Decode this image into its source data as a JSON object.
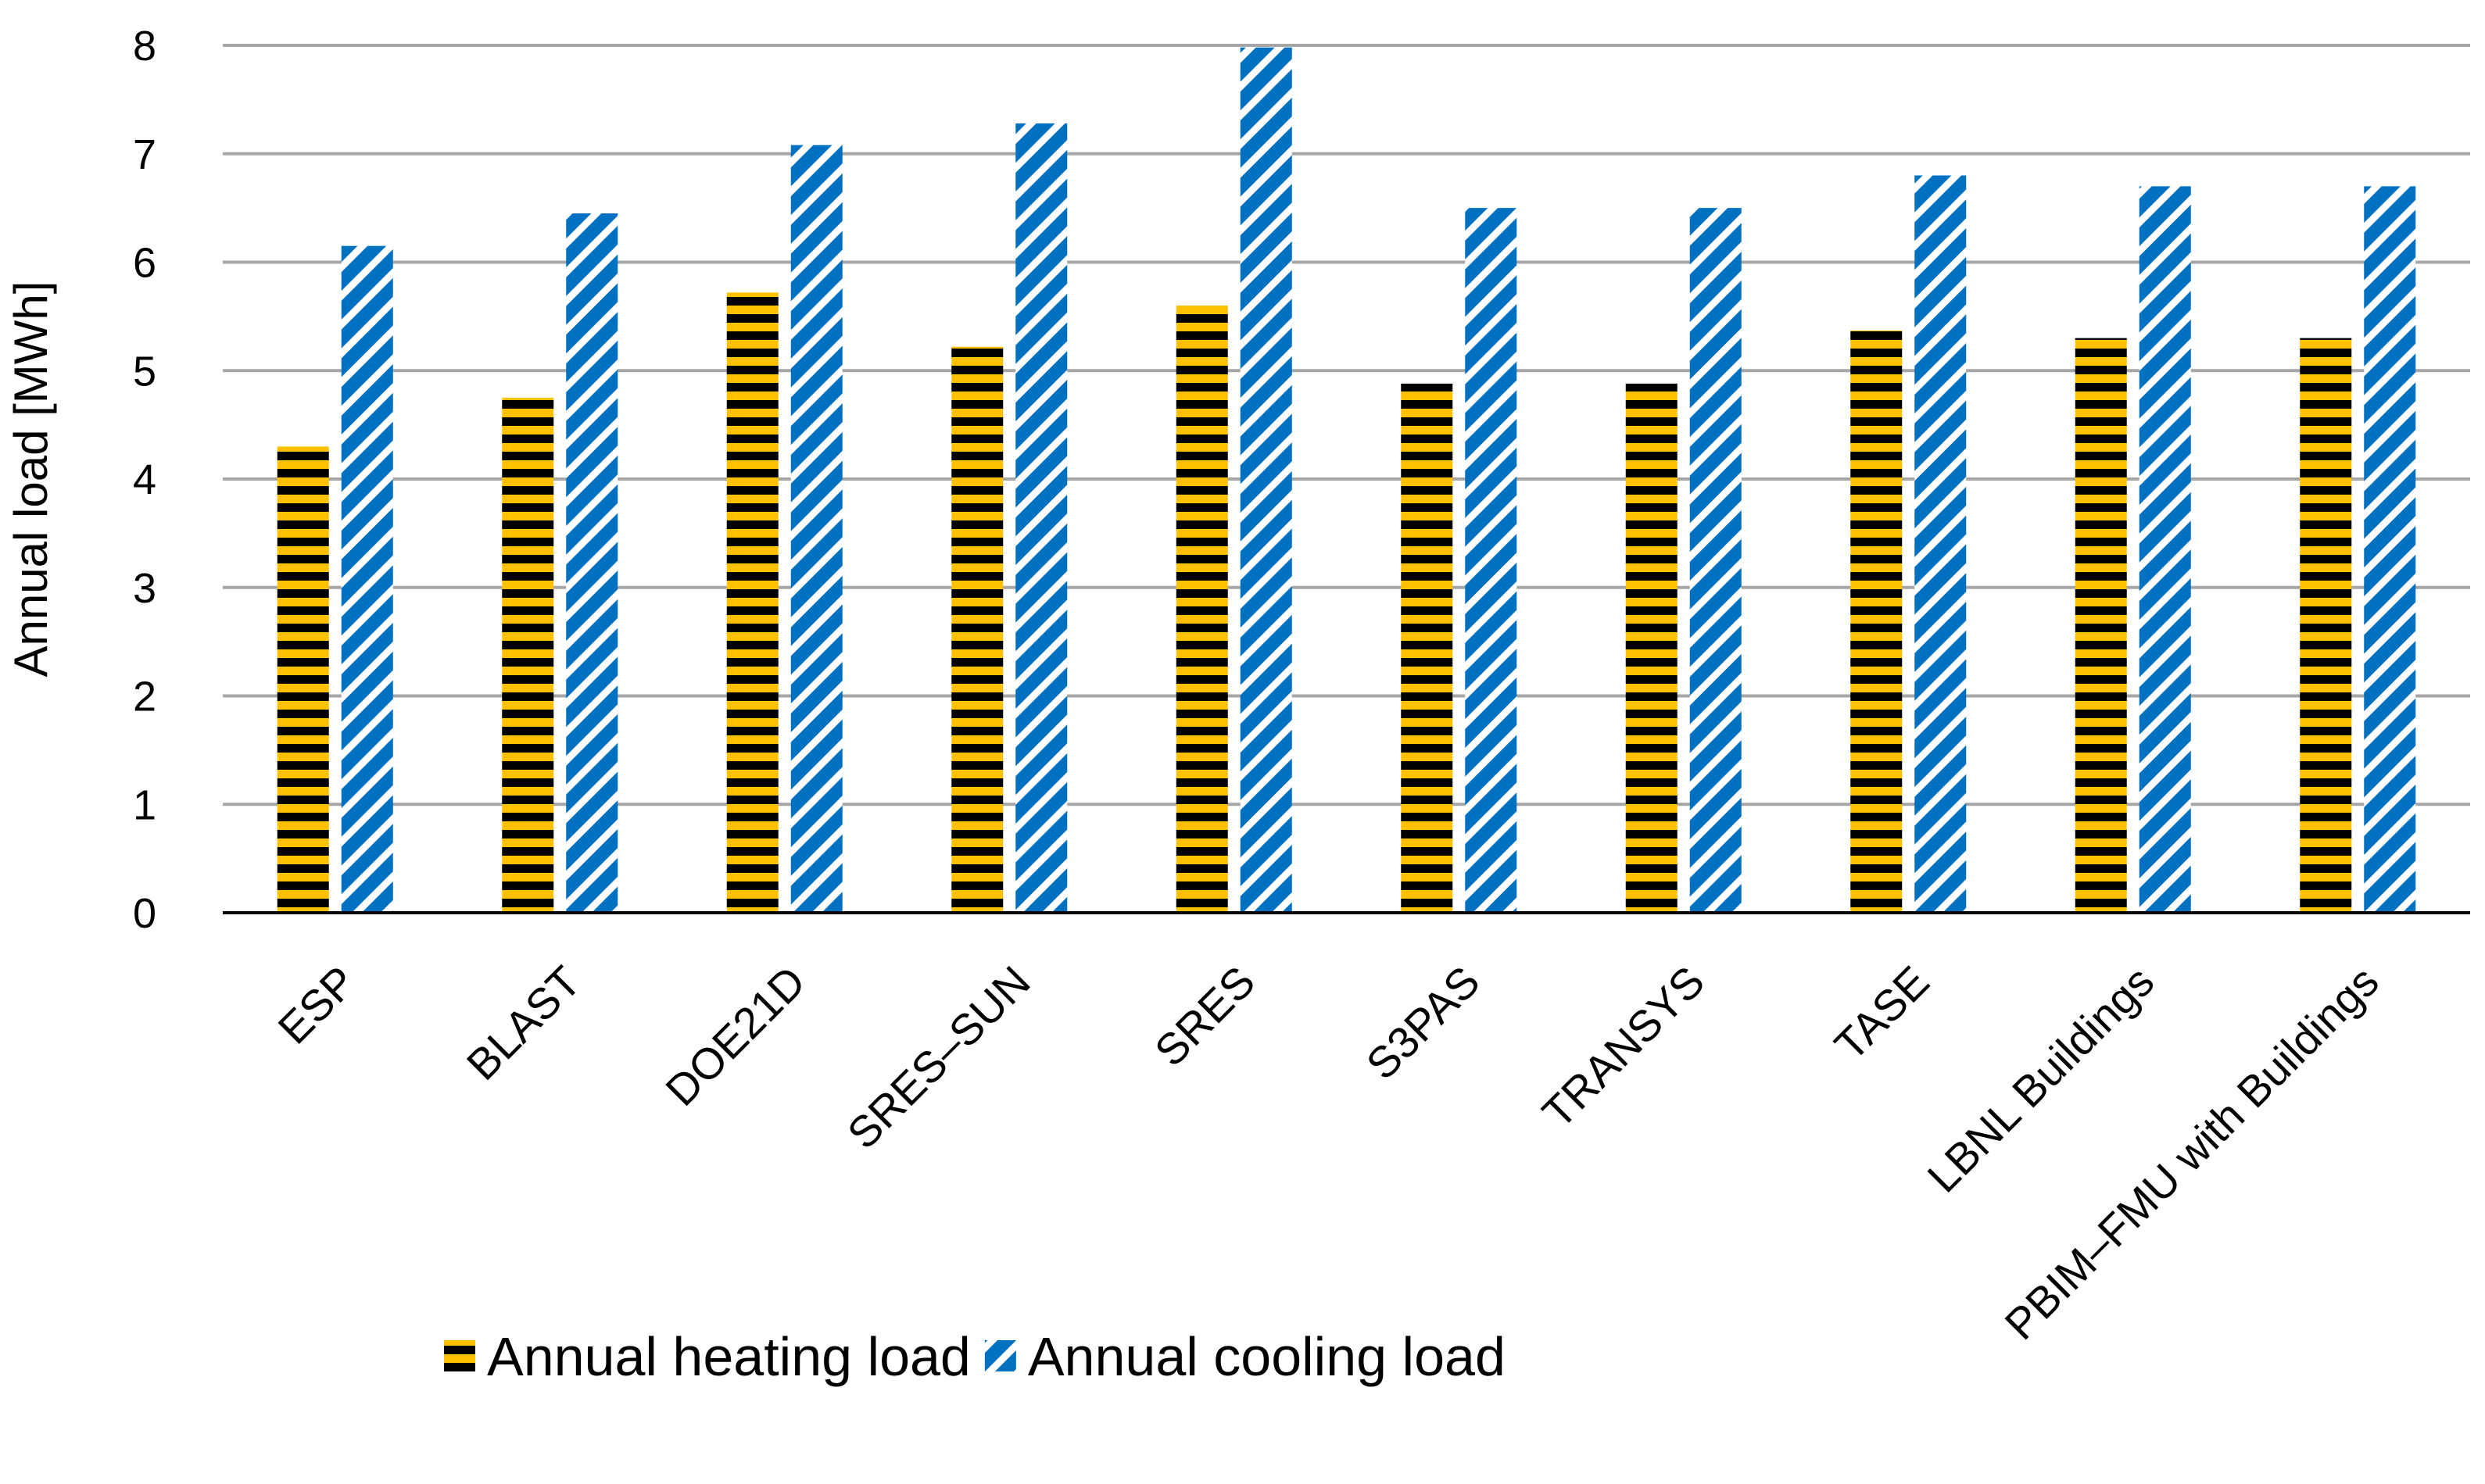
{
  "chart_data": {
    "type": "bar",
    "title": "",
    "xlabel": "",
    "ylabel": "Annual load [MWh]",
    "ylim": [
      0,
      8
    ],
    "yticks": [
      "0",
      "1",
      "2",
      "3",
      "4",
      "5",
      "6",
      "7",
      "8"
    ],
    "grid": true,
    "legend_position": "bottom",
    "categories": [
      "ESP",
      "BLAST",
      "DOE21D",
      "SRES–SUN",
      "SRES",
      "S3PAS",
      "TRANSYS",
      "TASE",
      "LBNL Buildings",
      "PBIM–FMU with Buildings"
    ],
    "series": [
      {
        "name": "Annual heating load",
        "values": [
          4.3,
          4.75,
          5.72,
          5.22,
          5.6,
          4.88,
          4.88,
          5.37,
          5.3,
          5.3
        ],
        "color": "#FFC000",
        "stripe_color": "#000000",
        "pattern": "horizontal"
      },
      {
        "name": "Annual cooling load",
        "values": [
          6.15,
          6.45,
          7.08,
          7.28,
          7.98,
          6.5,
          6.5,
          6.8,
          6.7,
          6.7
        ],
        "color": "#0070C0",
        "stripe_color": "#ffffff",
        "pattern": "diagonal"
      }
    ]
  }
}
